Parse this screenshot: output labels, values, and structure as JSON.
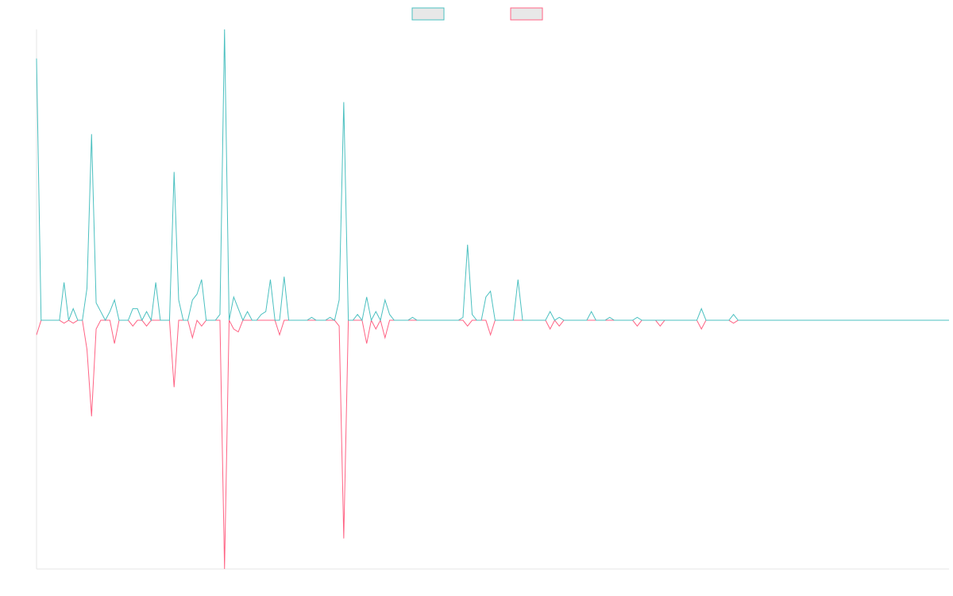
{
  "chart_data": {
    "type": "line",
    "series": [
      {
        "color": "#4bc0c0",
        "values": [
          0.9,
          0,
          0,
          0,
          0,
          0,
          0.13,
          0,
          0.04,
          0,
          0,
          0.11,
          0.64,
          0.06,
          0.03,
          0,
          0.03,
          0.07,
          0,
          0,
          0,
          0.04,
          0.04,
          0,
          0.03,
          0,
          0.13,
          0,
          0,
          0,
          0.51,
          0.07,
          0,
          0,
          0.07,
          0.09,
          0.14,
          0,
          0,
          0,
          0.02,
          1,
          0,
          0.08,
          0.04,
          0,
          0.03,
          0,
          0,
          0.02,
          0.03,
          0.14,
          0,
          0,
          0.15,
          0,
          0,
          0,
          0,
          0,
          0.01,
          0,
          0,
          0,
          0.01,
          0,
          0.07,
          0.75,
          0,
          0,
          0.02,
          0,
          0.08,
          0,
          0.03,
          0,
          0.07,
          0.02,
          0,
          0,
          0,
          0,
          0.01,
          0,
          0,
          0,
          0,
          0,
          0,
          0,
          0,
          0,
          0,
          0.01,
          0.26,
          0.02,
          0,
          0,
          0.08,
          0.1,
          0,
          0,
          0,
          0,
          0,
          0.14,
          0,
          0,
          0,
          0,
          0,
          0,
          0.03,
          0,
          0.01,
          0,
          0,
          0,
          0,
          0,
          0,
          0.03,
          0,
          0,
          0,
          0.01,
          0,
          0,
          0,
          0,
          0,
          0.01,
          0,
          0,
          0,
          0,
          0,
          0,
          0,
          0,
          0,
          0,
          0,
          0,
          0,
          0.04,
          0,
          0,
          0,
          0,
          0,
          0,
          0.02,
          0,
          0,
          0,
          0,
          0,
          0,
          0,
          0,
          0,
          0,
          0,
          0,
          0,
          0,
          0,
          0,
          0,
          0,
          0,
          0,
          0,
          0,
          0,
          0,
          0,
          0,
          0,
          0,
          0,
          0,
          0,
          0,
          0,
          0,
          0,
          0,
          0,
          0,
          0,
          0,
          0,
          0,
          0,
          0,
          0,
          0,
          0
        ]
      },
      {
        "color": "#ff6384",
        "values": [
          -0.05,
          0,
          0,
          0,
          0,
          0,
          -0.01,
          0,
          -0.01,
          0,
          0,
          -0.1,
          -0.33,
          -0.03,
          0,
          0,
          0,
          -0.08,
          0,
          0,
          0,
          -0.02,
          0,
          0,
          -0.02,
          0,
          0,
          0,
          0,
          0,
          -0.23,
          0,
          0,
          0,
          -0.06,
          0,
          -0.02,
          0,
          0,
          0,
          0,
          -0.855,
          0,
          -0.03,
          -0.04,
          0,
          0,
          0,
          0,
          0,
          0,
          0,
          0,
          -0.05,
          0,
          0,
          0,
          0,
          0,
          0,
          0,
          0,
          0,
          0,
          0,
          0,
          -0.02,
          -0.75,
          0,
          0,
          0,
          0,
          -0.08,
          0,
          -0.03,
          0,
          -0.06,
          0,
          0,
          0,
          0,
          0,
          0,
          0,
          0,
          0,
          0,
          0,
          0,
          0,
          0,
          0,
          0,
          0,
          -0.02,
          0,
          0,
          0,
          0,
          -0.05,
          0,
          0,
          0,
          0,
          0,
          0,
          0,
          0,
          0,
          0,
          0,
          0,
          -0.03,
          0,
          -0.02,
          0,
          0,
          0,
          0,
          0,
          0,
          0,
          0,
          0,
          0,
          0,
          0,
          0,
          0,
          0,
          0,
          -0.02,
          0,
          0,
          0,
          0,
          -0.02,
          0,
          0,
          0,
          0,
          0,
          0,
          0,
          0,
          -0.03,
          0,
          0,
          0,
          0,
          0,
          0,
          -0.01,
          0,
          0,
          0,
          0,
          0,
          0,
          0,
          0,
          0,
          0,
          0,
          0,
          0,
          0,
          0,
          0,
          0,
          0,
          0,
          0,
          0,
          0,
          0,
          0,
          0,
          0,
          0,
          0,
          0,
          0,
          0,
          0,
          0,
          0,
          0,
          0,
          0,
          0,
          0,
          0,
          0,
          0,
          0,
          0,
          0,
          0,
          0
        ]
      }
    ],
    "ylim": [
      -0.855,
      1
    ]
  }
}
